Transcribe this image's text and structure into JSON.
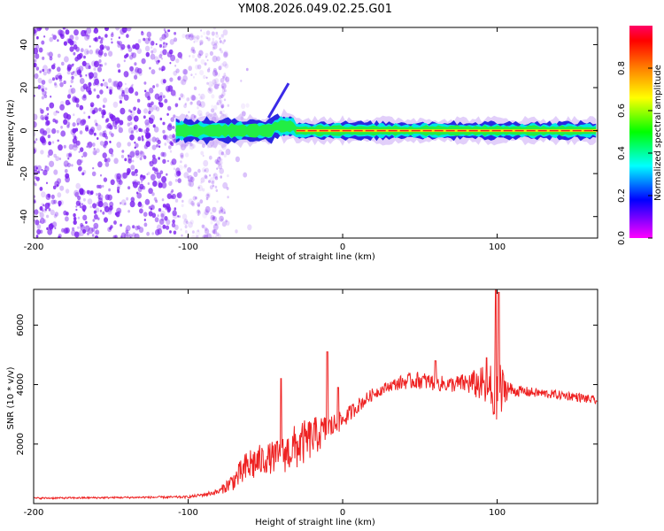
{
  "title": "YM08.2026.049.02.25.G01",
  "colors": {
    "snr_line": "#ee2222",
    "ridge": "#ee2222",
    "speckle": "#7a1ef0"
  },
  "chart_data": [
    {
      "type": "heatmap",
      "name": "spectrogram",
      "xlabel": "Height of straight line (km)",
      "ylabel": "Frequency (Hz)",
      "xlim": [
        -200,
        165
      ],
      "ylim": [
        -50,
        48
      ],
      "xticks": [
        -200,
        -100,
        0,
        100
      ],
      "yticks": [
        -40,
        -20,
        0,
        20,
        40
      ],
      "description_series": {
        "noise_region_x": [
          -200,
          -80
        ],
        "signal_band_hz": [
          -5,
          5
        ],
        "ridge_frequency_hz": 0
      }
    },
    {
      "type": "colorbar",
      "name": "amplitude-colorbar",
      "label": "Normalized spectral amplitude",
      "range": [
        0.0,
        1.0
      ],
      "ticks": [
        "0.0",
        "0.2",
        "0.4",
        "0.6",
        "0.8"
      ],
      "colormap": [
        "#ff00ff",
        "#0000ff",
        "#00ffff",
        "#00ff00",
        "#ffff00",
        "#ff8000",
        "#ff0000",
        "#ff0066"
      ]
    },
    {
      "type": "line",
      "name": "snr",
      "xlabel": "Height of straight line (km)",
      "ylabel": "SNR (10 * v/v)",
      "xlim": [
        -200,
        165
      ],
      "ylim": [
        0,
        7200
      ],
      "xticks": [
        -200,
        -100,
        0,
        100
      ],
      "yticks": [
        2000,
        4000,
        6000
      ],
      "series": [
        {
          "name": "SNR",
          "x": [
            -200,
            -150,
            -100,
            -90,
            -80,
            -70,
            -60,
            -50,
            -40,
            -30,
            -20,
            -10,
            0,
            10,
            20,
            30,
            40,
            50,
            60,
            70,
            80,
            90,
            95,
            100,
            105,
            110,
            130,
            150,
            165
          ],
          "values": [
            180,
            200,
            220,
            300,
            400,
            800,
            1300,
            1500,
            1600,
            1900,
            2200,
            2500,
            2800,
            3300,
            3700,
            3950,
            4100,
            4150,
            4050,
            4000,
            4050,
            4000,
            3800,
            3500,
            3900,
            3800,
            3700,
            3600,
            3450
          ],
          "noise": [
            30,
            30,
            40,
            60,
            100,
            350,
            650,
            500,
            600,
            800,
            700,
            500,
            300,
            250,
            200,
            180,
            260,
            300,
            280,
            260,
            350,
            600,
            900,
            1600,
            500,
            200,
            150,
            150,
            150
          ],
          "spikes": [
            [
              -40,
              4200
            ],
            [
              -10,
              5100
            ],
            [
              -3,
              3900
            ],
            [
              60,
              4800
            ],
            [
              93,
              4900
            ],
            [
              99,
              7300
            ],
            [
              101,
              7100
            ]
          ]
        }
      ]
    }
  ]
}
